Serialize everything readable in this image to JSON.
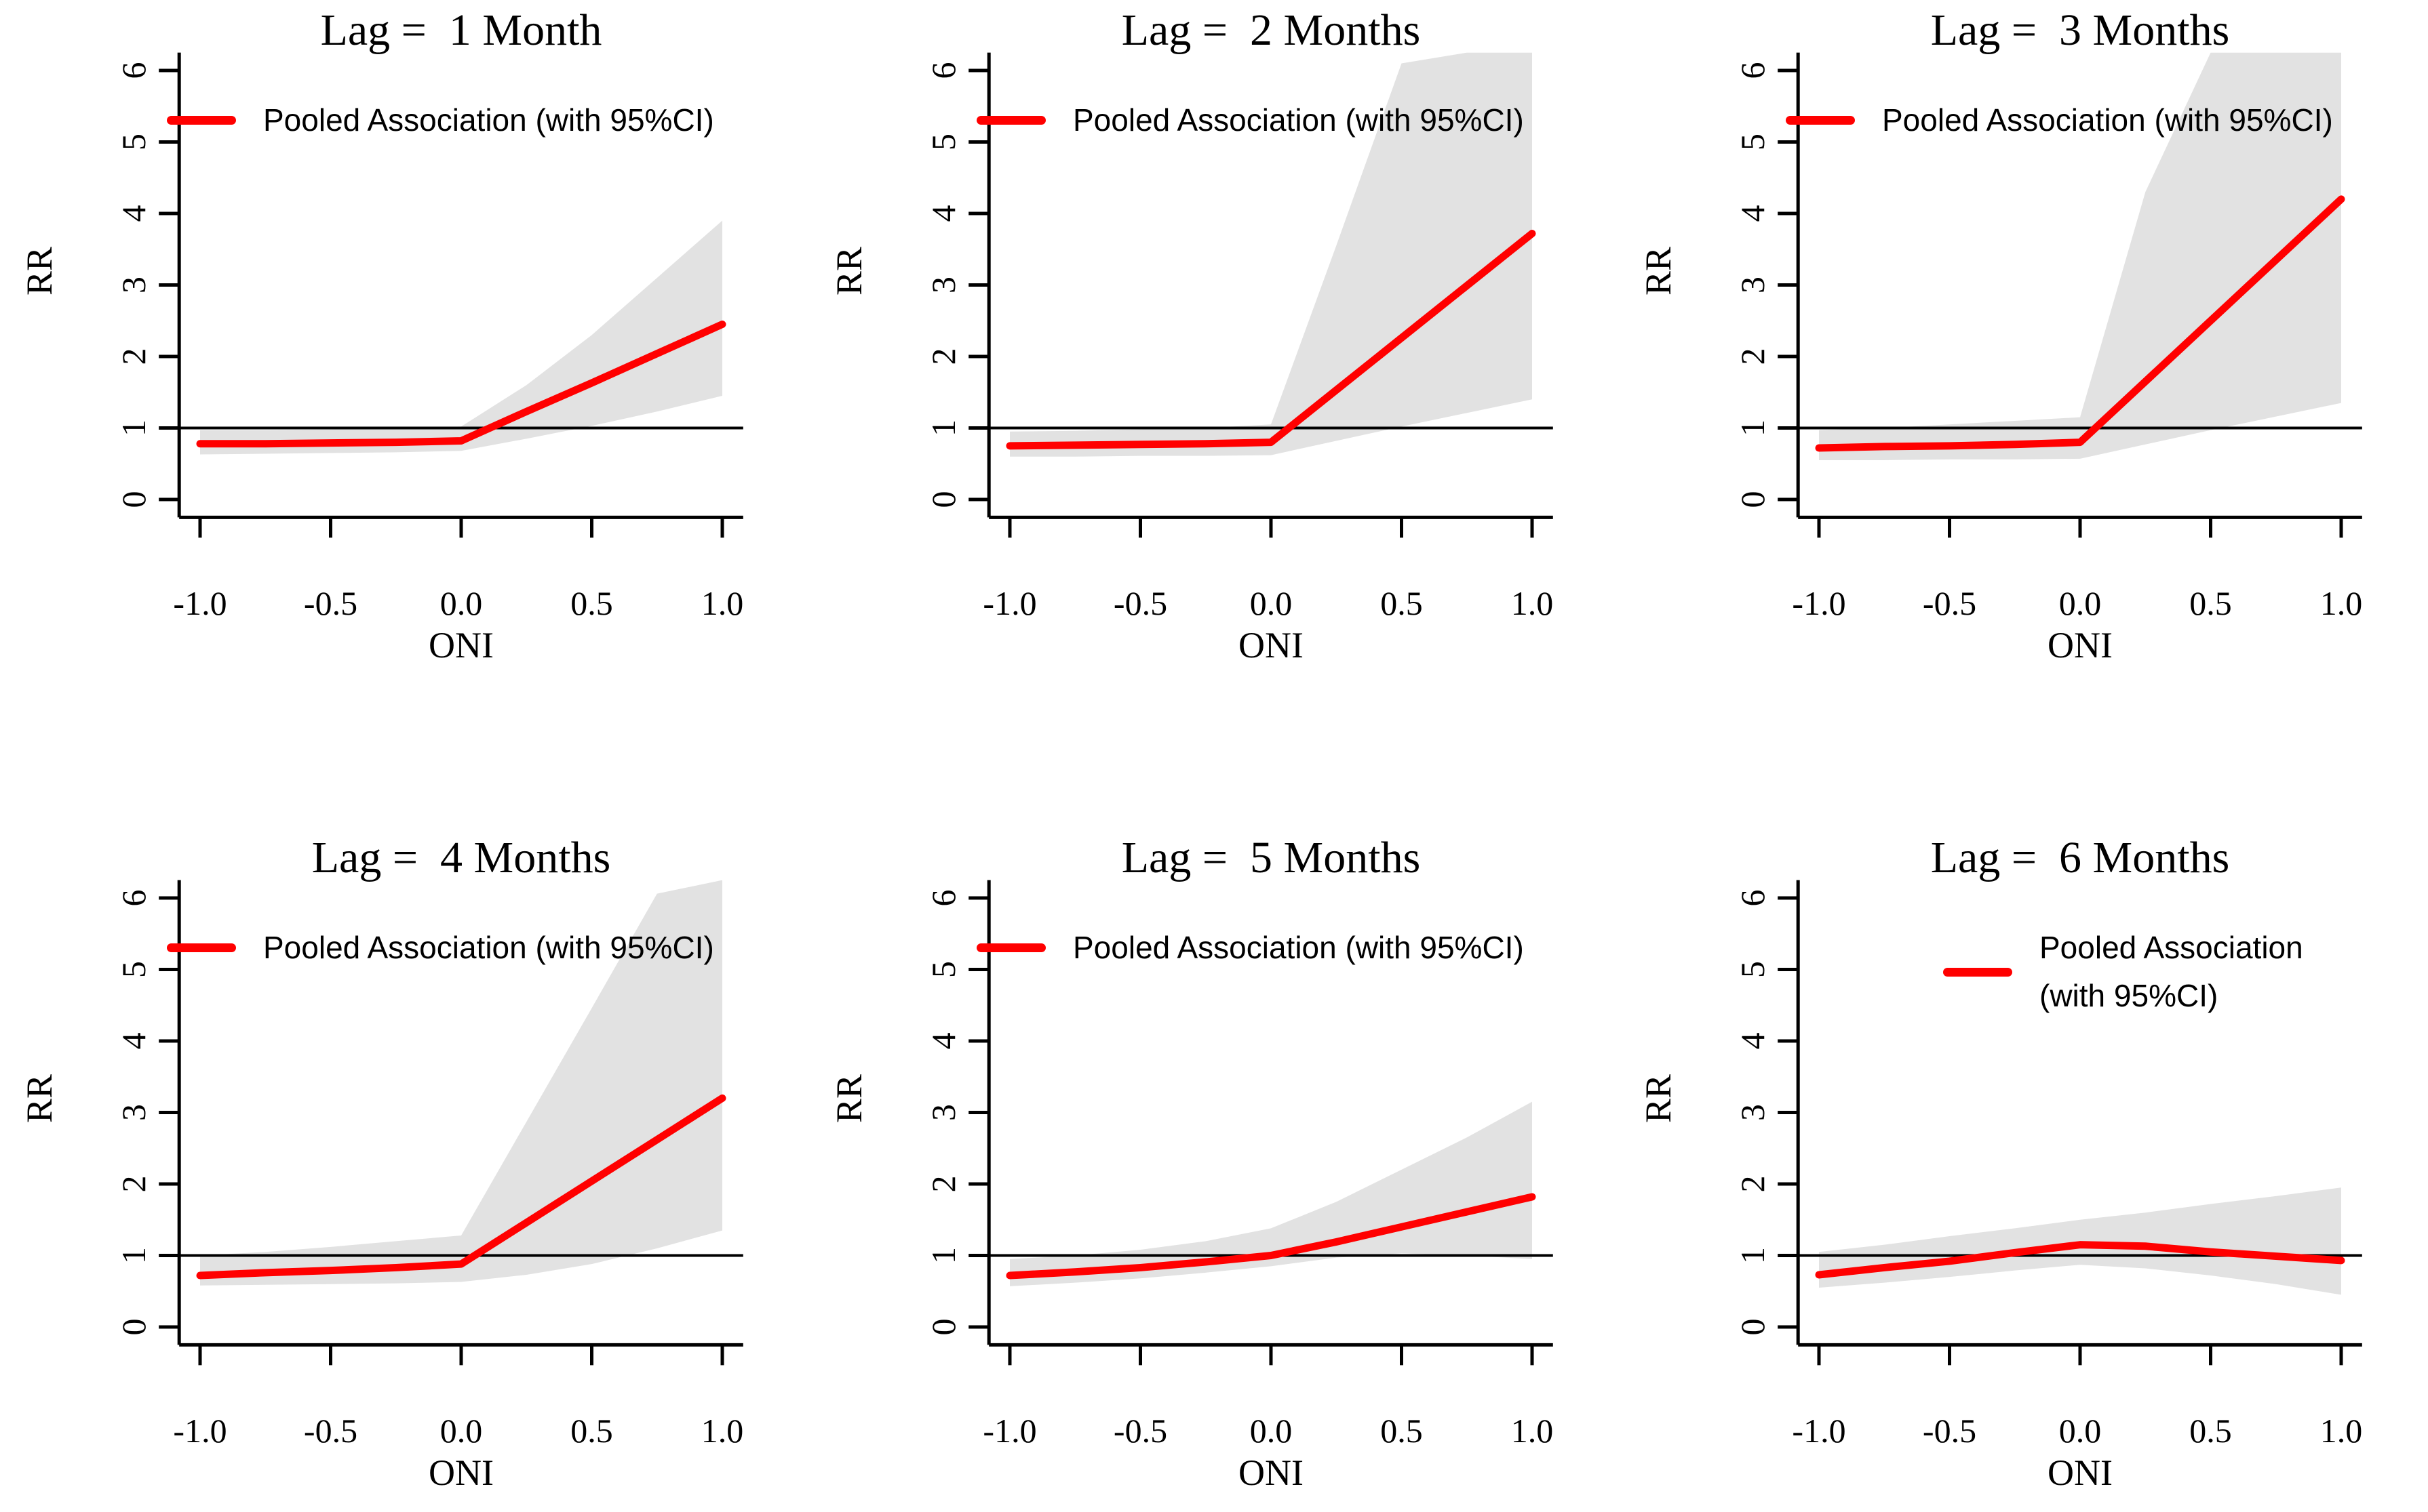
{
  "figure": {
    "background": "#FFFFFF",
    "colors": {
      "line": "#FF0000",
      "band": "#E2E2E2",
      "axis": "#000000",
      "reference_line": "#000000",
      "text": "#000000"
    },
    "rows": 2,
    "cols": 3
  },
  "chart_data": [
    {
      "type": "line",
      "title": "Lag =  1 Month",
      "xlabel": "ONI",
      "ylabel": "RR",
      "xlim": [
        -1.08,
        1.08
      ],
      "ylim": [
        -0.25,
        6.25
      ],
      "xticks": [
        "-1.0",
        "-0.5",
        "0.0",
        "0.5",
        "1.0"
      ],
      "yticks": [
        "0",
        "1",
        "2",
        "3",
        "4",
        "5",
        "6"
      ],
      "reference_y": 1,
      "grid": false,
      "legend_position": "topleft",
      "legend_lines": [
        "Pooled Association (with 95%CI)"
      ],
      "x": [
        -1,
        -0.75,
        -0.5,
        -0.25,
        0,
        0.25,
        0.5,
        0.75,
        1
      ],
      "series": [
        {
          "name": "Pooled Association",
          "values": [
            0.78,
            0.78,
            0.79,
            0.8,
            0.82,
            1.23,
            1.63,
            2.04,
            2.45
          ]
        }
      ],
      "band": {
        "name": "95% CI",
        "lower": [
          0.63,
          0.64,
          0.65,
          0.66,
          0.68,
          0.85,
          1.03,
          1.23,
          1.45
        ],
        "upper": [
          0.97,
          0.97,
          0.98,
          1.0,
          1.02,
          1.6,
          2.3,
          3.1,
          3.9
        ]
      }
    },
    {
      "type": "line",
      "title": "Lag =  2 Months",
      "xlabel": "ONI",
      "ylabel": "RR",
      "xlim": [
        -1.08,
        1.08
      ],
      "ylim": [
        -0.25,
        6.25
      ],
      "xticks": [
        "-1.0",
        "-0.5",
        "0.0",
        "0.5",
        "1.0"
      ],
      "yticks": [
        "0",
        "1",
        "2",
        "3",
        "4",
        "5",
        "6"
      ],
      "reference_y": 1,
      "grid": false,
      "legend_position": "topleft",
      "legend_lines": [
        "Pooled Association (with 95%CI)"
      ],
      "x": [
        -1,
        -0.75,
        -0.5,
        -0.25,
        0,
        0.25,
        0.5,
        0.75,
        1
      ],
      "series": [
        {
          "name": "Pooled Association",
          "values": [
            0.75,
            0.76,
            0.77,
            0.78,
            0.8,
            1.53,
            2.26,
            2.99,
            3.72
          ]
        }
      ],
      "band": {
        "name": "95% CI",
        "lower": [
          0.6,
          0.6,
          0.61,
          0.61,
          0.62,
          0.82,
          1.02,
          1.21,
          1.4
        ],
        "upper": [
          0.95,
          0.96,
          0.98,
          1.0,
          1.05,
          3.55,
          6.1,
          6.25,
          6.25
        ]
      }
    },
    {
      "type": "line",
      "title": "Lag =  3 Months",
      "xlabel": "ONI",
      "ylabel": "RR",
      "xlim": [
        -1.08,
        1.08
      ],
      "ylim": [
        -0.25,
        6.25
      ],
      "xticks": [
        "-1.0",
        "-0.5",
        "0.0",
        "0.5",
        "1.0"
      ],
      "yticks": [
        "0",
        "1",
        "2",
        "3",
        "4",
        "5",
        "6"
      ],
      "reference_y": 1,
      "grid": false,
      "legend_position": "topleft",
      "legend_lines": [
        "Pooled Association (with 95%CI)"
      ],
      "x": [
        -1,
        -0.75,
        -0.5,
        -0.25,
        0,
        0.25,
        0.5,
        0.75,
        1
      ],
      "series": [
        {
          "name": "Pooled Association",
          "values": [
            0.72,
            0.74,
            0.75,
            0.77,
            0.8,
            1.65,
            2.5,
            3.35,
            4.2
          ]
        }
      ],
      "band": {
        "name": "95% CI",
        "lower": [
          0.55,
          0.55,
          0.56,
          0.56,
          0.57,
          0.77,
          0.97,
          1.16,
          1.35
        ],
        "upper": [
          0.97,
          1.0,
          1.05,
          1.1,
          1.15,
          4.3,
          6.25,
          6.25,
          6.25
        ]
      }
    },
    {
      "type": "line",
      "title": "Lag =  4 Months",
      "xlabel": "ONI",
      "ylabel": "RR",
      "xlim": [
        -1.08,
        1.08
      ],
      "ylim": [
        -0.25,
        6.25
      ],
      "xticks": [
        "-1.0",
        "-0.5",
        "0.0",
        "0.5",
        "1.0"
      ],
      "yticks": [
        "0",
        "1",
        "2",
        "3",
        "4",
        "5",
        "6"
      ],
      "reference_y": 1,
      "grid": false,
      "legend_position": "topleft",
      "legend_lines": [
        "Pooled Association (with 95%CI)"
      ],
      "x": [
        -1,
        -0.75,
        -0.5,
        -0.25,
        0,
        0.25,
        0.5,
        0.75,
        1
      ],
      "series": [
        {
          "name": "Pooled Association",
          "values": [
            0.72,
            0.76,
            0.79,
            0.83,
            0.88,
            1.46,
            2.04,
            2.62,
            3.2
          ]
        }
      ],
      "band": {
        "name": "95% CI",
        "lower": [
          0.58,
          0.59,
          0.6,
          0.61,
          0.63,
          0.73,
          0.88,
          1.1,
          1.35
        ],
        "upper": [
          1.0,
          1.05,
          1.12,
          1.2,
          1.28,
          2.87,
          4.46,
          6.06,
          6.25
        ]
      }
    },
    {
      "type": "line",
      "title": "Lag =  5 Months",
      "xlabel": "ONI",
      "ylabel": "RR",
      "xlim": [
        -1.08,
        1.08
      ],
      "ylim": [
        -0.25,
        6.25
      ],
      "xticks": [
        "-1.0",
        "-0.5",
        "0.0",
        "0.5",
        "1.0"
      ],
      "yticks": [
        "0",
        "1",
        "2",
        "3",
        "4",
        "5",
        "6"
      ],
      "reference_y": 1,
      "grid": false,
      "legend_position": "topleft",
      "legend_lines": [
        "Pooled Association (with 95%CI)"
      ],
      "x": [
        -1,
        -0.75,
        -0.5,
        -0.25,
        0,
        0.25,
        0.5,
        0.75,
        1
      ],
      "series": [
        {
          "name": "Pooled Association",
          "values": [
            0.72,
            0.77,
            0.83,
            0.91,
            1.0,
            1.19,
            1.4,
            1.61,
            1.82
          ]
        }
      ],
      "band": {
        "name": "95% CI",
        "lower": [
          0.57,
          0.62,
          0.68,
          0.76,
          0.85,
          0.97,
          1.03,
          1.0,
          0.95
        ],
        "upper": [
          0.95,
          1.0,
          1.08,
          1.2,
          1.38,
          1.75,
          2.2,
          2.65,
          3.15
        ]
      }
    },
    {
      "type": "line",
      "title": "Lag =  6 Months",
      "xlabel": "ONI",
      "ylabel": "RR",
      "xlim": [
        -1.08,
        1.08
      ],
      "ylim": [
        -0.25,
        6.25
      ],
      "xticks": [
        "-1.0",
        "-0.5",
        "0.0",
        "0.5",
        "1.0"
      ],
      "yticks": [
        "0",
        "1",
        "2",
        "3",
        "4",
        "5",
        "6"
      ],
      "reference_y": 1,
      "grid": false,
      "legend_position": "top-center",
      "legend_lines": [
        "Pooled Association",
        "(with 95%CI)"
      ],
      "x": [
        -1,
        -0.75,
        -0.5,
        -0.25,
        0,
        0.25,
        0.5,
        0.75,
        1
      ],
      "series": [
        {
          "name": "Pooled Association",
          "values": [
            0.73,
            0.83,
            0.92,
            1.04,
            1.15,
            1.13,
            1.05,
            0.99,
            0.93
          ]
        }
      ],
      "band": {
        "name": "95% CI",
        "lower": [
          0.55,
          0.62,
          0.7,
          0.79,
          0.87,
          0.82,
          0.72,
          0.6,
          0.45
        ],
        "upper": [
          1.05,
          1.15,
          1.27,
          1.38,
          1.5,
          1.6,
          1.72,
          1.83,
          1.95
        ]
      }
    }
  ]
}
